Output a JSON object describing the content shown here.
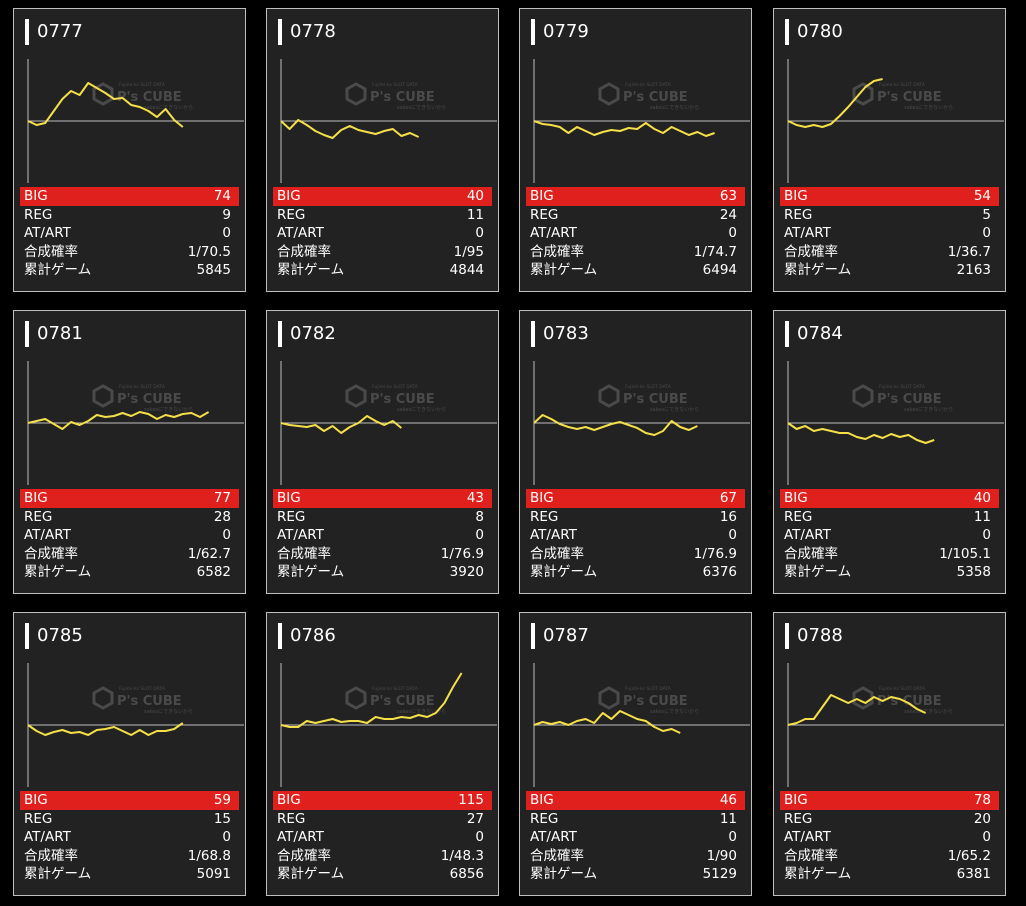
{
  "labels": {
    "big": "BIG",
    "reg": "REG",
    "at_art": "AT/ART",
    "combined_prob": "合成確率",
    "total_games": "累計ゲーム"
  },
  "watermark": {
    "brand": "P's CUBE",
    "tagline": "Fujimi-ks SLOT DATA",
    "sub": "sakesにできないから"
  },
  "colors": {
    "card_bg": "#222222",
    "big_row": "#e0201c",
    "chart_line": "#f5e04a",
    "axis": "#bfbfbf"
  },
  "cards": [
    {
      "id": "0777",
      "big": "74",
      "reg": "9",
      "at_art": "0",
      "combined_prob": "1/70.5",
      "total_games": "5845",
      "chart_data": {
        "type": "line",
        "y": [
          0,
          -4,
          -2,
          10,
          22,
          30,
          26,
          38,
          33,
          28,
          22,
          23,
          16,
          14,
          10,
          4,
          12,
          1,
          -6
        ]
      }
    },
    {
      "id": "0778",
      "big": "40",
      "reg": "11",
      "at_art": "0",
      "combined_prob": "1/95",
      "total_games": "4844",
      "chart_data": {
        "type": "line",
        "y": [
          0,
          -8,
          1,
          -4,
          -10,
          -14,
          -17,
          -9,
          -5,
          -9,
          -11,
          -13,
          -10,
          -8,
          -15,
          -12,
          -16
        ]
      }
    },
    {
      "id": "0779",
      "big": "63",
      "reg": "24",
      "at_art": "0",
      "combined_prob": "1/74.7",
      "total_games": "6494",
      "chart_data": {
        "type": "line",
        "y": [
          0,
          -3,
          -4,
          -6,
          -12,
          -6,
          -10,
          -14,
          -11,
          -9,
          -10,
          -7,
          -8,
          -2,
          -8,
          -12,
          -6,
          -10,
          -14,
          -11,
          -15,
          -12
        ]
      }
    },
    {
      "id": "0780",
      "big": "54",
      "reg": "5",
      "at_art": "0",
      "combined_prob": "1/36.7",
      "total_games": "2163",
      "chart_data": {
        "type": "line",
        "y": [
          0,
          -4,
          -6,
          -4,
          -6,
          -3,
          5,
          14,
          24,
          34,
          40,
          42
        ]
      }
    },
    {
      "id": "0781",
      "big": "77",
      "reg": "28",
      "at_art": "0",
      "combined_prob": "1/62.7",
      "total_games": "6582",
      "chart_data": {
        "type": "line",
        "y": [
          0,
          2,
          4,
          -1,
          -6,
          1,
          -2,
          2,
          8,
          6,
          7,
          10,
          7,
          11,
          9,
          4,
          8,
          6,
          9,
          10,
          6,
          11
        ]
      }
    },
    {
      "id": "0782",
      "big": "43",
      "reg": "8",
      "at_art": "0",
      "combined_prob": "1/76.9",
      "total_games": "3920",
      "chart_data": {
        "type": "line",
        "y": [
          0,
          -2,
          -3,
          -4,
          -2,
          -8,
          -3,
          -10,
          -4,
          0,
          7,
          2,
          -2,
          2,
          -5
        ]
      }
    },
    {
      "id": "0783",
      "big": "67",
      "reg": "16",
      "at_art": "0",
      "combined_prob": "1/76.9",
      "total_games": "6376",
      "chart_data": {
        "type": "line",
        "y": [
          0,
          8,
          4,
          -1,
          -4,
          -6,
          -4,
          -7,
          -4,
          -1,
          1,
          -2,
          -5,
          -10,
          -12,
          -8,
          2,
          -4,
          -7,
          -3
        ]
      }
    },
    {
      "id": "0784",
      "big": "40",
      "reg": "11",
      "at_art": "0",
      "combined_prob": "1/105.1",
      "total_games": "5358",
      "chart_data": {
        "type": "line",
        "y": [
          0,
          -6,
          -3,
          -8,
          -6,
          -8,
          -10,
          -10,
          -14,
          -16,
          -12,
          -15,
          -11,
          -14,
          -12,
          -17,
          -20,
          -17
        ]
      }
    },
    {
      "id": "0785",
      "big": "59",
      "reg": "15",
      "at_art": "0",
      "combined_prob": "1/68.8",
      "total_games": "5091",
      "chart_data": {
        "type": "line",
        "y": [
          0,
          -6,
          -10,
          -7,
          -5,
          -8,
          -7,
          -10,
          -5,
          -4,
          -2,
          -6,
          -10,
          -5,
          -10,
          -6,
          -6,
          -4,
          2
        ]
      }
    },
    {
      "id": "0786",
      "big": "115",
      "reg": "27",
      "at_art": "0",
      "combined_prob": "1/48.3",
      "total_games": "6856",
      "chart_data": {
        "type": "line",
        "y": [
          0,
          -2,
          -2,
          4,
          2,
          4,
          6,
          3,
          4,
          4,
          2,
          8,
          6,
          6,
          8,
          7,
          10,
          8,
          12,
          22,
          38,
          52
        ]
      }
    },
    {
      "id": "0787",
      "big": "46",
      "reg": "11",
      "at_art": "0",
      "combined_prob": "1/90",
      "total_games": "5129",
      "chart_data": {
        "type": "line",
        "y": [
          0,
          3,
          1,
          3,
          0,
          4,
          6,
          2,
          12,
          6,
          14,
          10,
          6,
          4,
          -2,
          -6,
          -4,
          -8
        ]
      }
    },
    {
      "id": "0788",
      "big": "78",
      "reg": "20",
      "at_art": "0",
      "combined_prob": "1/65.2",
      "total_games": "6381",
      "chart_data": {
        "type": "line",
        "y": [
          0,
          2,
          6,
          6,
          18,
          30,
          26,
          22,
          26,
          22,
          28,
          24,
          28,
          26,
          22,
          16,
          12
        ]
      }
    }
  ]
}
